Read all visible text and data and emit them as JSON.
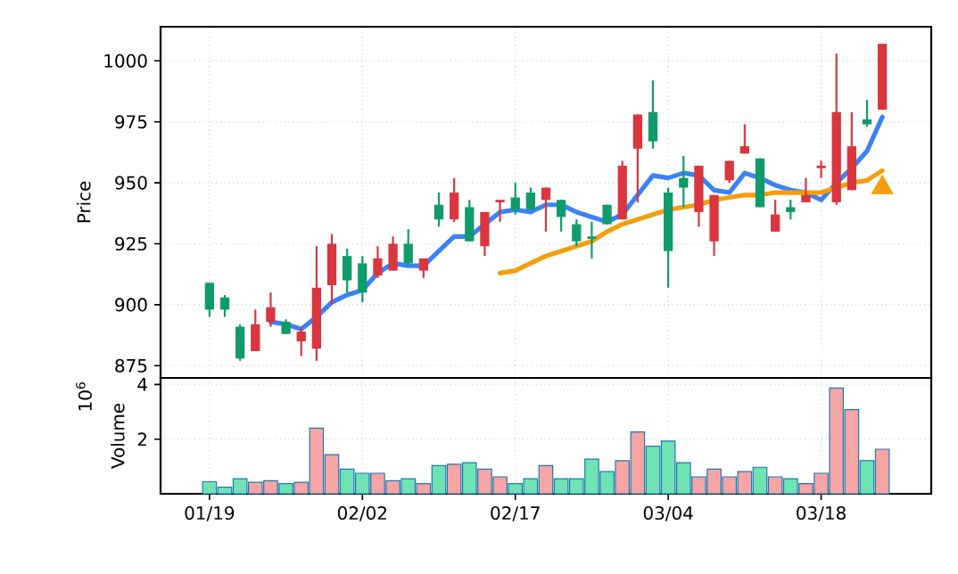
{
  "chart_data": [
    {
      "type": "candlestick",
      "ylabel": "Price",
      "tick_labels": "y",
      "grid": true,
      "categories": [
        null,
        null,
        null,
        null,
        null,
        null,
        null,
        null,
        null,
        null,
        null,
        null,
        null,
        null,
        null,
        null,
        null,
        null,
        null,
        null,
        null,
        null,
        null,
        null,
        null,
        null,
        null,
        null,
        null,
        null,
        null,
        null,
        null,
        null,
        null,
        null,
        null,
        null,
        null,
        null,
        null,
        null,
        null,
        null,
        null
      ],
      "ohlc": [
        [
          898,
          909,
          895,
          909
        ],
        [
          898,
          904,
          895,
          903
        ],
        [
          878,
          892,
          877,
          891
        ],
        [
          892,
          898,
          881,
          881
        ],
        [
          899,
          905,
          891,
          893
        ],
        [
          888,
          894,
          888,
          893
        ],
        [
          889,
          891,
          879,
          885
        ],
        [
          907,
          924,
          877,
          882
        ],
        [
          925,
          929,
          900,
          908
        ],
        [
          910,
          923,
          905,
          920
        ],
        [
          905,
          920,
          901,
          917
        ],
        [
          919,
          924,
          911,
          912
        ],
        [
          925,
          928,
          914,
          914
        ],
        [
          917,
          931,
          916,
          925
        ],
        [
          919,
          919,
          911,
          914
        ],
        [
          935,
          946,
          932,
          941
        ],
        [
          946,
          952,
          934,
          935
        ],
        [
          926,
          943,
          926,
          940
        ],
        [
          938,
          938,
          920,
          924
        ],
        [
          943,
          943,
          934,
          942
        ],
        [
          939,
          950,
          937,
          944
        ],
        [
          939,
          948,
          939,
          946
        ],
        [
          948,
          948,
          930,
          943
        ],
        [
          936,
          943,
          930,
          943
        ],
        [
          926,
          935,
          924,
          933
        ],
        [
          927,
          934,
          919,
          928
        ],
        [
          933,
          941,
          933,
          941
        ],
        [
          957,
          959,
          935,
          935
        ],
        [
          978,
          978,
          942,
          964
        ],
        [
          967,
          992,
          964,
          979
        ],
        [
          922,
          948,
          907,
          946
        ],
        [
          948,
          961,
          940,
          952
        ],
        [
          957,
          957,
          932,
          938
        ],
        [
          945,
          945,
          920,
          926
        ],
        [
          959,
          959,
          950,
          951
        ],
        [
          965,
          974,
          962,
          962
        ],
        [
          940,
          960,
          940,
          960
        ],
        [
          937,
          943,
          930,
          930
        ],
        [
          938,
          943,
          935,
          940
        ],
        [
          945,
          952,
          942,
          942
        ],
        [
          957,
          959,
          952,
          956
        ],
        [
          979,
          1003,
          941,
          942
        ],
        [
          965,
          979,
          947,
          947
        ],
        [
          974,
          984,
          973,
          976
        ],
        [
          1007,
          1007,
          980,
          980
        ]
      ],
      "colors": [
        "#0f9b6c",
        "#0f9b6c",
        "#0f9b6c",
        "#d9363e",
        "#d9363e",
        "#0f9b6c",
        "#d9363e",
        "#d9363e",
        "#d9363e",
        "#0f9b6c",
        "#0f9b6c",
        "#d9363e",
        "#d9363e",
        "#0f9b6c",
        "#d9363e",
        "#0f9b6c",
        "#d9363e",
        "#0f9b6c",
        "#d9363e",
        "#d9363e",
        "#0f9b6c",
        "#0f9b6c",
        "#d9363e",
        "#0f9b6c",
        "#0f9b6c",
        "#0f9b6c",
        "#0f9b6c",
        "#d9363e",
        "#d9363e",
        "#0f9b6c",
        "#0f9b6c",
        "#0f9b6c",
        "#d9363e",
        "#d9363e",
        "#d9363e",
        "#d9363e",
        "#0f9b6c",
        "#d9363e",
        "#0f9b6c",
        "#d9363e",
        "#d9363e",
        "#d9363e",
        "#d9363e",
        "#0f9b6c",
        "#d9363e"
      ],
      "ylim": [
        870,
        1014
      ],
      "yticks": [
        875,
        900,
        925,
        950,
        975,
        1000
      ],
      "series": [
        {
          "type": "line",
          "color": "#3b82f6",
          "values": [
            null,
            null,
            null,
            null,
            893,
            892,
            890,
            895,
            901,
            904,
            906,
            913,
            917,
            916,
            916,
            922,
            928,
            928,
            933,
            938,
            939,
            938,
            941,
            941,
            938,
            936,
            934,
            937,
            945,
            953,
            952,
            954,
            953,
            947,
            946,
            954,
            952,
            949,
            947,
            946,
            943,
            950,
            956,
            963,
            977
          ]
        },
        {
          "type": "line",
          "color": "#f59e0b",
          "values": [
            null,
            null,
            null,
            null,
            null,
            null,
            null,
            null,
            null,
            null,
            null,
            null,
            null,
            null,
            null,
            null,
            null,
            null,
            null,
            913,
            914,
            917,
            920,
            922,
            924,
            926,
            930,
            933,
            935,
            937,
            939,
            940,
            941,
            943,
            944,
            945,
            945,
            946,
            946,
            946,
            946,
            948,
            950,
            951,
            955
          ]
        },
        {
          "type": "scatter",
          "marker": "triangle",
          "color": "#f59e0b",
          "values": [
            null,
            null,
            null,
            null,
            null,
            null,
            null,
            null,
            null,
            null,
            null,
            null,
            null,
            null,
            null,
            null,
            null,
            null,
            null,
            null,
            null,
            null,
            null,
            null,
            null,
            null,
            null,
            null,
            null,
            null,
            null,
            null,
            null,
            null,
            null,
            null,
            null,
            null,
            null,
            null,
            null,
            null,
            null,
            null,
            948
          ]
        }
      ]
    },
    {
      "type": "bar",
      "ylabel": "Volume",
      "annotations": [
        "10$^{6}$"
      ],
      "grid": true,
      "categories": [
        "01/19",
        null,
        null,
        null,
        null,
        null,
        null,
        null,
        null,
        null,
        "02/02",
        null,
        null,
        null,
        null,
        null,
        null,
        null,
        null,
        null,
        "02/17",
        null,
        null,
        null,
        null,
        null,
        null,
        null,
        null,
        null,
        "03/04",
        null,
        null,
        null,
        null,
        null,
        null,
        null,
        null,
        null,
        "03/18",
        null,
        null,
        null,
        null
      ],
      "values": [
        0.44,
        0.24,
        0.55,
        0.42,
        0.48,
        0.37,
        0.42,
        2.4,
        1.43,
        0.9,
        0.75,
        0.75,
        0.48,
        0.55,
        0.37,
        1.03,
        1.08,
        1.14,
        0.9,
        0.62,
        0.37,
        0.55,
        1.03,
        0.55,
        0.55,
        1.27,
        0.81,
        1.21,
        2.26,
        1.74,
        1.93,
        1.14,
        0.62,
        0.9,
        0.62,
        0.81,
        0.97,
        0.62,
        0.55,
        0.37,
        0.75,
        3.87,
        3.08,
        1.21,
        1.63
      ],
      "colors": [
        "#70e3b5",
        "#70e3b5",
        "#70e3b5",
        "#f6a5a5",
        "#f6a5a5",
        "#70e3b5",
        "#f6a5a5",
        "#f6a5a5",
        "#f6a5a5",
        "#70e3b5",
        "#70e3b5",
        "#f6a5a5",
        "#f6a5a5",
        "#70e3b5",
        "#f6a5a5",
        "#70e3b5",
        "#f6a5a5",
        "#70e3b5",
        "#f6a5a5",
        "#f6a5a5",
        "#70e3b5",
        "#70e3b5",
        "#f6a5a5",
        "#70e3b5",
        "#70e3b5",
        "#70e3b5",
        "#70e3b5",
        "#f6a5a5",
        "#f6a5a5",
        "#70e3b5",
        "#70e3b5",
        "#70e3b5",
        "#f6a5a5",
        "#f6a5a5",
        "#f6a5a5",
        "#f6a5a5",
        "#70e3b5",
        "#f6a5a5",
        "#70e3b5",
        "#f6a5a5",
        "#f6a5a5",
        "#f6a5a5",
        "#f6a5a5",
        "#70e3b5",
        "#f6a5a5"
      ],
      "ylim": [
        0,
        4.24
      ],
      "yticks": [
        2,
        4
      ]
    }
  ]
}
